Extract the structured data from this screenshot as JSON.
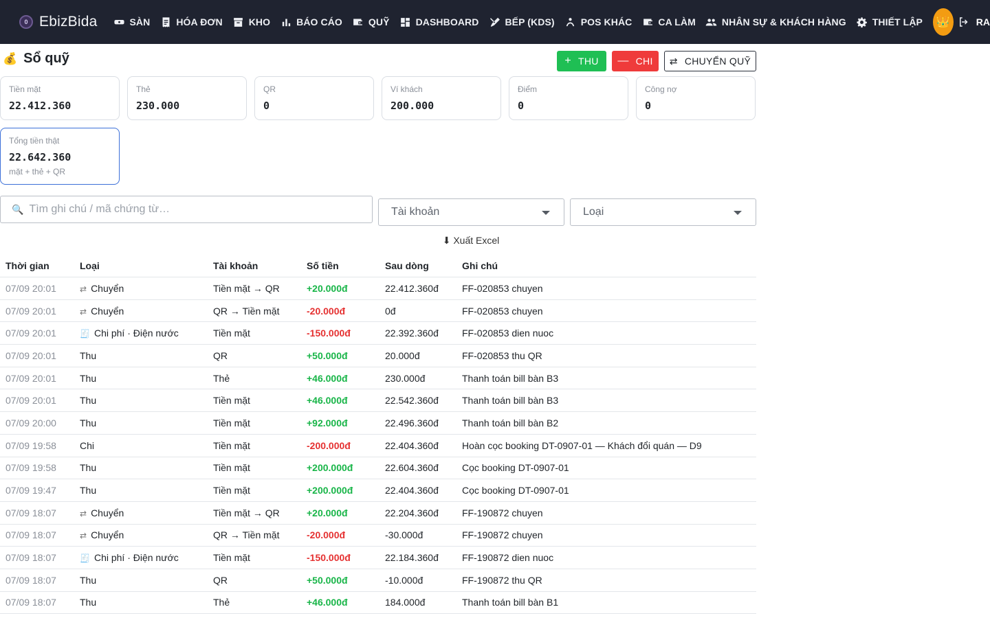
{
  "app": {
    "name": "EbizBida",
    "logo_glyph": "0",
    "avatar_glyph": "👑",
    "logout_label": "RA"
  },
  "nav": [
    {
      "label": "SÀN",
      "icon": "table-billiard-icon"
    },
    {
      "label": "HÓA ĐƠN",
      "icon": "receipt-icon"
    },
    {
      "label": "KHO",
      "icon": "archive-icon"
    },
    {
      "label": "BÁO CÁO",
      "icon": "bar-chart-icon"
    },
    {
      "label": "QUỸ",
      "icon": "wallet-icon"
    },
    {
      "label": "DASHBOARD",
      "icon": "dashboard-icon"
    },
    {
      "label": "BẾP (KDS)",
      "icon": "utensils-icon"
    },
    {
      "label": "POS KHÁC",
      "icon": "person-icon"
    },
    {
      "label": "CA LÀM",
      "icon": "wallet-shift-icon"
    },
    {
      "label": "NHÂN SỰ & KHÁCH HÀNG",
      "icon": "people-icon"
    },
    {
      "label": "THIẾT LẬP",
      "icon": "gear-icon"
    }
  ],
  "page": {
    "title": "Sổ quỹ",
    "title_icon": "💰",
    "btn_thu": "THU",
    "btn_chi": "CHI",
    "btn_transfer": "CHUYỂN QUỸ"
  },
  "cards": [
    {
      "label": "Tiền mặt",
      "value": "22.412.360"
    },
    {
      "label": "Thẻ",
      "value": "230.000"
    },
    {
      "label": "QR",
      "value": "0"
    },
    {
      "label": "Ví khách",
      "value": "200.000"
    },
    {
      "label": "Điểm",
      "value": "0"
    },
    {
      "label": "Công nợ",
      "value": "0"
    }
  ],
  "total_card": {
    "label": "Tổng tiền thật",
    "value": "22.642.360",
    "sub": "mặt + thẻ + QR"
  },
  "filters": {
    "search_placeholder": "Tìm ghi chú / mã chứng từ…",
    "account_placeholder": "Tài khoản",
    "type_placeholder": "Loại",
    "export_label": "⬇ Xuất Excel"
  },
  "table": {
    "headers": {
      "time": "Thời gian",
      "type": "Loại",
      "account": "Tài khoản",
      "amount": "Số tiền",
      "after": "Sau dòng",
      "note": "Ghi chú"
    },
    "rows": [
      {
        "time": "07/09 20:01",
        "type_icon": "⇄",
        "type": "Chuyển",
        "account": "Tiền mặt → QR",
        "amount": "+20.000đ",
        "sign": "pos",
        "after": "22.412.360đ",
        "note": "FF-020853 chuyen"
      },
      {
        "time": "07/09 20:01",
        "type_icon": "⇄",
        "type": "Chuyển",
        "account": "QR → Tiền mặt",
        "amount": "-20.000đ",
        "sign": "neg",
        "after": "0đ",
        "note": "FF-020853 chuyen"
      },
      {
        "time": "07/09 20:01",
        "type_icon": "🧾",
        "type": "Chi phí · Điện nước",
        "account": "Tiền mặt",
        "amount": "-150.000đ",
        "sign": "neg",
        "after": "22.392.360đ",
        "note": "FF-020853 dien nuoc"
      },
      {
        "time": "07/09 20:01",
        "type_icon": "",
        "type": "Thu",
        "account": "QR",
        "amount": "+50.000đ",
        "sign": "pos",
        "after": "20.000đ",
        "note": "FF-020853 thu QR"
      },
      {
        "time": "07/09 20:01",
        "type_icon": "",
        "type": "Thu",
        "account": "Thẻ",
        "amount": "+46.000đ",
        "sign": "pos",
        "after": "230.000đ",
        "note": "Thanh toán bill bàn B3"
      },
      {
        "time": "07/09 20:01",
        "type_icon": "",
        "type": "Thu",
        "account": "Tiền mặt",
        "amount": "+46.000đ",
        "sign": "pos",
        "after": "22.542.360đ",
        "note": "Thanh toán bill bàn B3"
      },
      {
        "time": "07/09 20:00",
        "type_icon": "",
        "type": "Thu",
        "account": "Tiền mặt",
        "amount": "+92.000đ",
        "sign": "pos",
        "after": "22.496.360đ",
        "note": "Thanh toán bill bàn B2"
      },
      {
        "time": "07/09 19:58",
        "type_icon": "",
        "type": "Chi",
        "account": "Tiền mặt",
        "amount": "-200.000đ",
        "sign": "neg",
        "after": "22.404.360đ",
        "note": "Hoàn cọc booking DT-0907-01 — Khách đổi quán — D9"
      },
      {
        "time": "07/09 19:58",
        "type_icon": "",
        "type": "Thu",
        "account": "Tiền mặt",
        "amount": "+200.000đ",
        "sign": "pos",
        "after": "22.604.360đ",
        "note": "Cọc booking DT-0907-01"
      },
      {
        "time": "07/09 19:47",
        "type_icon": "",
        "type": "Thu",
        "account": "Tiền mặt",
        "amount": "+200.000đ",
        "sign": "pos",
        "after": "22.404.360đ",
        "note": "Cọc booking DT-0907-01"
      },
      {
        "time": "07/09 18:07",
        "type_icon": "⇄",
        "type": "Chuyển",
        "account": "Tiền mặt → QR",
        "amount": "+20.000đ",
        "sign": "pos",
        "after": "22.204.360đ",
        "note": "FF-190872 chuyen"
      },
      {
        "time": "07/09 18:07",
        "type_icon": "⇄",
        "type": "Chuyển",
        "account": "QR → Tiền mặt",
        "amount": "-20.000đ",
        "sign": "neg",
        "after": "-30.000đ",
        "note": "FF-190872 chuyen"
      },
      {
        "time": "07/09 18:07",
        "type_icon": "🧾",
        "type": "Chi phí · Điện nước",
        "account": "Tiền mặt",
        "amount": "-150.000đ",
        "sign": "neg",
        "after": "22.184.360đ",
        "note": "FF-190872 dien nuoc"
      },
      {
        "time": "07/09 18:07",
        "type_icon": "",
        "type": "Thu",
        "account": "QR",
        "amount": "+50.000đ",
        "sign": "pos",
        "after": "-10.000đ",
        "note": "FF-190872 thu QR"
      },
      {
        "time": "07/09 18:07",
        "type_icon": "",
        "type": "Thu",
        "account": "Thẻ",
        "amount": "+46.000đ",
        "sign": "pos",
        "after": "184.000đ",
        "note": "Thanh toán bill bàn B1"
      }
    ]
  },
  "colors": {
    "nav_bg": "#1f2330",
    "thu": "#1fbf54",
    "chi": "#ef3b3b",
    "positive": "#18b548",
    "negative": "#e53131",
    "accent": "#3b6fd8",
    "avatar": "#f39c12"
  }
}
